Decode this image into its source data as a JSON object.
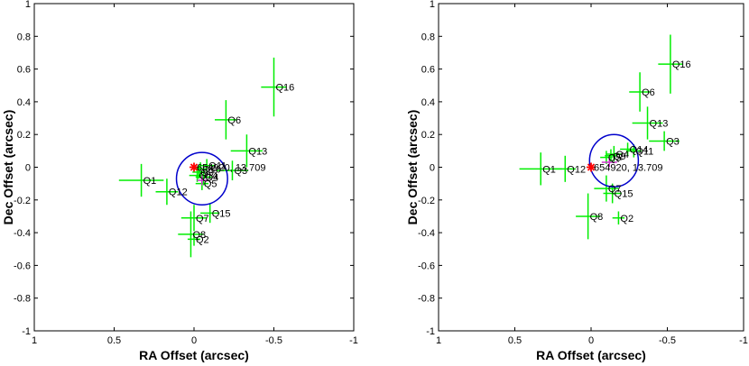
{
  "chart_data": [
    {
      "type": "scatter",
      "title": "",
      "xlabel": "RA Offset (arcsec)",
      "ylabel": "Dec Offset (arcsec)",
      "xlim": [
        1,
        -1
      ],
      "ylim": [
        -1,
        1
      ],
      "xticks": [
        "1",
        "0.5",
        "0",
        "-0.5",
        "-1"
      ],
      "yticks": [
        "1",
        "0.8",
        "0.6",
        "0.4",
        "0.2",
        "0",
        "-0.2",
        "-0.4",
        "-0.6",
        "-0.8",
        "-1"
      ],
      "colors": {
        "error_bars": "#00ee00",
        "circle": "#0000cc",
        "marker": "#ff0000",
        "mean": "#cc33cc",
        "axes": "#000000"
      },
      "target": {
        "x": 0.0,
        "y": 0.0,
        "label": "654920, 13.709"
      },
      "circle": {
        "cx": -0.05,
        "cy": -0.07,
        "r": 0.16
      },
      "mean": {
        "x": -0.05,
        "y": -0.08,
        "xerr": 0.03,
        "yerr": 0.03
      },
      "points": [
        {
          "label": "Q1",
          "x": 0.33,
          "y": -0.08,
          "xerr": 0.14,
          "yerr": 0.1
        },
        {
          "label": "Q2",
          "x": 0.0,
          "y": -0.44,
          "xerr": 0.04,
          "yerr": 0.04
        },
        {
          "label": "Q3",
          "x": -0.24,
          "y": -0.02,
          "xerr": 0.1,
          "yerr": 0.06
        },
        {
          "label": "Q4",
          "x": -0.06,
          "y": -0.06,
          "xerr": 0.05,
          "yerr": 0.05
        },
        {
          "label": "Q6",
          "x": -0.2,
          "y": 0.29,
          "xerr": 0.07,
          "yerr": 0.12
        },
        {
          "label": "Q7",
          "x": 0.0,
          "y": -0.31,
          "xerr": 0.08,
          "yerr": 0.08
        },
        {
          "label": "Q8",
          "x": 0.02,
          "y": -0.41,
          "xerr": 0.08,
          "yerr": 0.14
        },
        {
          "label": "Q11",
          "x": -0.08,
          "y": 0.01,
          "xerr": 0.05,
          "yerr": 0.04
        },
        {
          "label": "Q12",
          "x": 0.17,
          "y": -0.15,
          "xerr": 0.07,
          "yerr": 0.08
        },
        {
          "label": "Q13",
          "x": -0.33,
          "y": 0.1,
          "xerr": 0.1,
          "yerr": 0.1
        },
        {
          "label": "Q14",
          "x": -0.02,
          "y": -0.05,
          "xerr": 0.05,
          "yerr": 0.04
        },
        {
          "label": "Q15",
          "x": -0.1,
          "y": -0.28,
          "xerr": 0.06,
          "yerr": 0.06
        },
        {
          "label": "Q16",
          "x": -0.5,
          "y": 0.49,
          "xerr": 0.08,
          "yerr": 0.18
        },
        {
          "label": "Q5",
          "x": -0.05,
          "y": -0.1,
          "xerr": 0.04,
          "yerr": 0.04
        },
        {
          "label": "Q9",
          "x": -0.03,
          "y": -0.03,
          "xerr": 0.04,
          "yerr": 0.04
        },
        {
          "label": "Q10",
          "x": -0.04,
          "y": -0.01,
          "xerr": 0.04,
          "yerr": 0.04
        }
      ]
    },
    {
      "type": "scatter",
      "title": "",
      "xlabel": "RA Offset (arcsec)",
      "ylabel": "Dec Offset (arcsec)",
      "xlim": [
        1,
        -1
      ],
      "ylim": [
        -1,
        1
      ],
      "xticks": [
        "1",
        "0.5",
        "0",
        "-0.5",
        "-1"
      ],
      "yticks": [
        "1",
        "0.8",
        "0.6",
        "0.4",
        "0.2",
        "0",
        "-0.2",
        "-0.4",
        "-0.6",
        "-0.8",
        "-1"
      ],
      "colors": {
        "error_bars": "#00ee00",
        "circle": "#0000cc",
        "marker": "#ff0000",
        "mean": "#cc33cc",
        "axes": "#000000"
      },
      "target": {
        "x": 0.0,
        "y": 0.0,
        "label": "654920, 13.709"
      },
      "circle": {
        "cx": -0.15,
        "cy": 0.04,
        "r": 0.16
      },
      "mean": {
        "x": -0.12,
        "y": 0.03,
        "xerr": 0.05,
        "yerr": 0.03
      },
      "points": [
        {
          "label": "Q1",
          "x": 0.33,
          "y": -0.01,
          "xerr": 0.14,
          "yerr": 0.1
        },
        {
          "label": "Q12",
          "x": 0.17,
          "y": -0.01,
          "xerr": 0.07,
          "yerr": 0.08
        },
        {
          "label": "Q16",
          "x": -0.52,
          "y": 0.63,
          "xerr": 0.08,
          "yerr": 0.18
        },
        {
          "label": "Q6",
          "x": -0.32,
          "y": 0.46,
          "xerr": 0.07,
          "yerr": 0.12
        },
        {
          "label": "Q13",
          "x": -0.37,
          "y": 0.27,
          "xerr": 0.1,
          "yerr": 0.1
        },
        {
          "label": "Q3",
          "x": -0.48,
          "y": 0.16,
          "xerr": 0.1,
          "yerr": 0.06
        },
        {
          "label": "Q14",
          "x": -0.24,
          "y": 0.11,
          "xerr": 0.05,
          "yerr": 0.04
        },
        {
          "label": "Q11",
          "x": -0.28,
          "y": 0.1,
          "xerr": 0.05,
          "yerr": 0.04
        },
        {
          "label": "Q4",
          "x": -0.15,
          "y": 0.08,
          "xerr": 0.05,
          "yerr": 0.05
        },
        {
          "label": "Q5",
          "x": -0.1,
          "y": 0.06,
          "xerr": 0.04,
          "yerr": 0.04
        },
        {
          "label": "Q9",
          "x": -0.13,
          "y": 0.07,
          "xerr": 0.04,
          "yerr": 0.04
        },
        {
          "label": "Q7",
          "x": -0.1,
          "y": -0.13,
          "xerr": 0.08,
          "yerr": 0.08
        },
        {
          "label": "Q15",
          "x": -0.14,
          "y": -0.16,
          "xerr": 0.06,
          "yerr": 0.06
        },
        {
          "label": "Q8",
          "x": 0.02,
          "y": -0.3,
          "xerr": 0.08,
          "yerr": 0.14
        },
        {
          "label": "Q2",
          "x": -0.18,
          "y": -0.31,
          "xerr": 0.04,
          "yerr": 0.04
        }
      ]
    }
  ]
}
